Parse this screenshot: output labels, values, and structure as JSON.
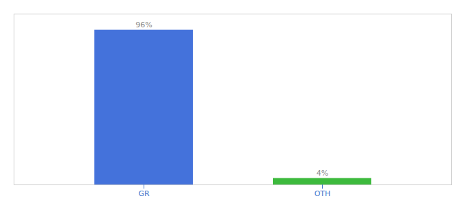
{
  "chart_data": {
    "type": "bar",
    "categories": [
      "GR",
      "OTH"
    ],
    "values": [
      96,
      4
    ],
    "value_labels": [
      "96%",
      "4%"
    ],
    "colors": [
      "#4472db",
      "#3dba3d"
    ],
    "ylim": [
      0,
      106
    ],
    "data_labels": true,
    "tick_labels": "x",
    "grid": false
  }
}
